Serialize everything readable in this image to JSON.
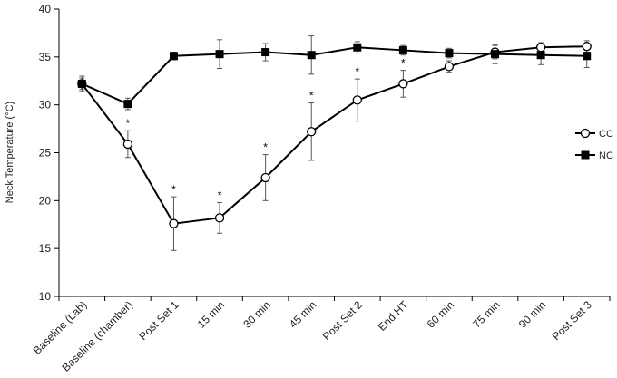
{
  "chart_data": {
    "type": "line",
    "title": "",
    "xlabel": "",
    "ylabel": "Neck Temperature (°C)",
    "ylim": [
      10,
      40
    ],
    "yticks": [
      10,
      15,
      20,
      25,
      30,
      35,
      40
    ],
    "categories": [
      "Baseline (Lab)",
      "Baseline (chamber)",
      "Post Set 1",
      "15 min",
      "30 min",
      "45 min",
      "Post Set 2",
      "End HT",
      "60 min",
      "75 min",
      "90 min",
      "Post Set 3"
    ],
    "series": [
      {
        "name": "CC",
        "marker": "open-circle",
        "values": [
          32.2,
          25.9,
          17.6,
          18.2,
          22.4,
          27.2,
          30.5,
          32.2,
          34.0,
          35.5,
          36.0,
          36.1
        ],
        "errors": [
          0.8,
          1.4,
          2.8,
          1.6,
          2.4,
          3.0,
          2.2,
          1.4,
          0.6,
          0.7,
          0.5,
          0.6
        ],
        "significance": [
          "",
          "*",
          "*",
          "*",
          "*",
          "*",
          "*",
          "*",
          "",
          "",
          "",
          ""
        ]
      },
      {
        "name": "NC",
        "marker": "filled-square",
        "values": [
          32.2,
          30.1,
          35.1,
          35.3,
          35.5,
          35.2,
          36.0,
          35.7,
          35.4,
          35.3,
          35.2,
          35.1
        ],
        "errors": [
          0.6,
          0.6,
          0.4,
          1.5,
          0.9,
          2.0,
          0.6,
          0.5,
          0.5,
          1.0,
          1.0,
          1.2
        ],
        "significance": [
          "",
          "",
          "",
          "",
          "",
          "",
          "",
          "",
          "",
          "",
          "",
          ""
        ]
      }
    ],
    "legend_position": "right",
    "grid": false
  }
}
